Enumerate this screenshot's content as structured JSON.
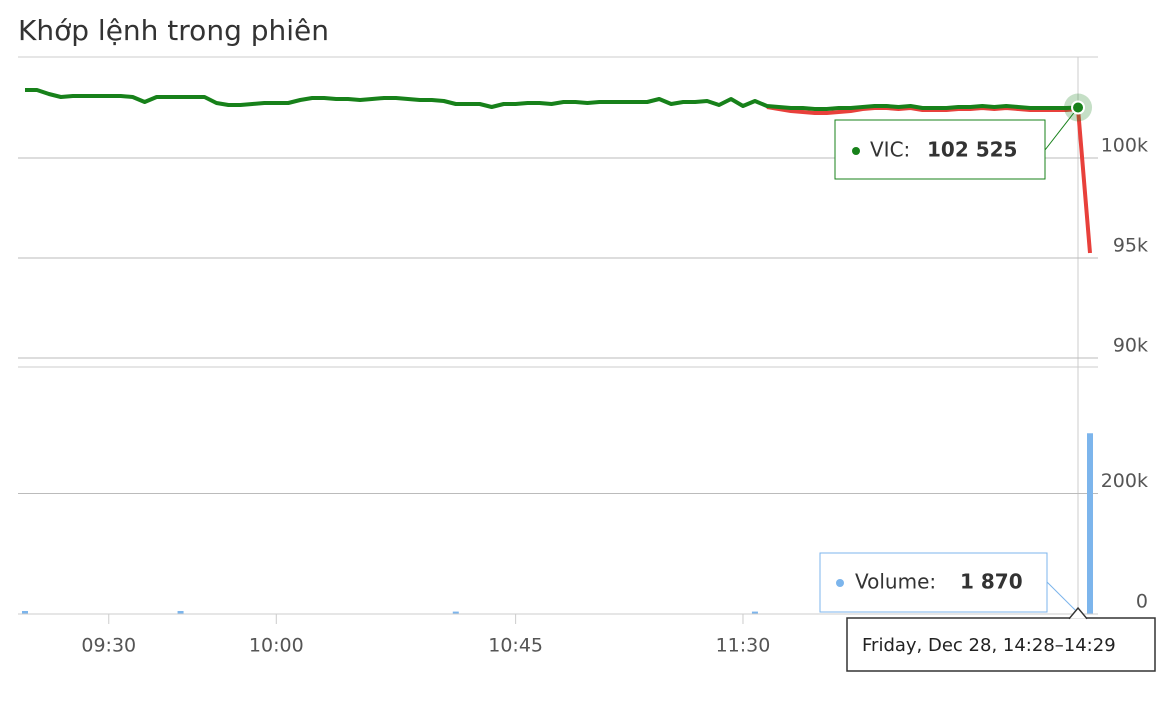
{
  "title": "Khớp lệnh trong phiên",
  "chart_data": [
    {
      "type": "line",
      "ylim": [
        90000,
        105000
      ],
      "yticks": [
        {
          "value": 90000,
          "label": "90k"
        },
        {
          "value": 95000,
          "label": "95k"
        },
        {
          "value": 100000,
          "label": "100k"
        }
      ],
      "grid": true,
      "series": [
        {
          "color": "#e8403b",
          "values": [
            null,
            null,
            null,
            null,
            null,
            null,
            null,
            null,
            null,
            null,
            null,
            null,
            null,
            null,
            null,
            null,
            null,
            null,
            null,
            null,
            null,
            null,
            null,
            null,
            null,
            null,
            null,
            null,
            null,
            null,
            null,
            null,
            null,
            null,
            null,
            null,
            null,
            null,
            null,
            null,
            null,
            null,
            null,
            null,
            null,
            null,
            null,
            null,
            null,
            null,
            null,
            null,
            null,
            null,
            null,
            null,
            null,
            null,
            null,
            null,
            null,
            null,
            102550,
            102450,
            102350,
            102300,
            102250,
            102250,
            102300,
            102350,
            102450,
            102500,
            102500,
            102450,
            102500,
            102400,
            102400,
            102400,
            102450,
            102450,
            102500,
            102450,
            102500,
            102450,
            102400,
            102400,
            102400,
            102400,
            102450,
            95250
          ]
        },
        {
          "color": "#17811a",
          "values": [
            103400,
            103400,
            103200,
            103050,
            103100,
            103100,
            103100,
            103100,
            103100,
            103050,
            102800,
            103050,
            103050,
            103050,
            103050,
            103050,
            102750,
            102650,
            102650,
            102700,
            102750,
            102750,
            102750,
            102900,
            103000,
            103000,
            102950,
            102950,
            102900,
            102950,
            103000,
            103000,
            102950,
            102900,
            102900,
            102850,
            102700,
            102700,
            102700,
            102550,
            102700,
            102700,
            102750,
            102750,
            102700,
            102800,
            102800,
            102750,
            102800,
            102800,
            102800,
            102800,
            102800,
            102950,
            102700,
            102800,
            102800,
            102850,
            102650,
            102950,
            102600,
            102850,
            102600,
            102550,
            102500,
            102500,
            102450,
            102450,
            102500,
            102500,
            102550,
            102600,
            102600,
            102550,
            102600,
            102500,
            102500,
            102500,
            102550,
            102550,
            102600,
            102550,
            102600,
            102550,
            102500,
            102500,
            102500,
            102500,
            102525,
            null
          ]
        }
      ],
      "tooltip": {
        "name": "VIC:",
        "value": 102525,
        "label": "102 525"
      }
    },
    {
      "type": "bar",
      "categories": [
        null,
        null,
        null,
        null,
        null,
        null,
        null,
        "09:30",
        null,
        null,
        null,
        null,
        null,
        null,
        null,
        null,
        null,
        null,
        null,
        null,
        null,
        "10:00",
        null,
        null,
        null,
        null,
        null,
        null,
        null,
        null,
        null,
        null,
        null,
        null,
        null,
        null,
        null,
        null,
        null,
        null,
        null,
        "10:45",
        null,
        null,
        null,
        null,
        null,
        null,
        null,
        null,
        null,
        null,
        null,
        null,
        null,
        null,
        null,
        null,
        null,
        null,
        "11:30",
        null,
        null,
        null,
        null,
        null,
        null,
        null,
        null,
        null,
        null,
        null,
        null,
        null,
        null,
        null,
        null,
        null,
        null,
        null,
        null,
        null,
        null,
        null,
        null,
        null,
        null,
        null,
        null,
        null
      ],
      "ylim": [
        0,
        410000
      ],
      "yticks": [
        0,
        {
          "value": 200000,
          "label": "200k"
        }
      ],
      "grid": true,
      "series": [
        {
          "color": "#7cb5ec",
          "values": [
            5000,
            800,
            800,
            800,
            800,
            800,
            800,
            800,
            800,
            800,
            800,
            800,
            800,
            5000,
            800,
            800,
            800,
            800,
            800,
            800,
            800,
            800,
            800,
            800,
            800,
            800,
            800,
            800,
            800,
            800,
            800,
            800,
            800,
            800,
            800,
            800,
            4000,
            800,
            800,
            800,
            800,
            800,
            800,
            800,
            800,
            800,
            800,
            800,
            800,
            800,
            800,
            800,
            800,
            800,
            800,
            800,
            800,
            800,
            800,
            800,
            800,
            4000,
            800,
            800,
            800,
            800,
            800,
            800,
            800,
            800,
            800,
            800,
            800,
            800,
            800,
            800,
            800,
            800,
            800,
            800,
            800,
            800,
            800,
            800,
            800,
            800,
            800,
            800,
            1870,
            300000
          ]
        }
      ],
      "tooltip": {
        "name": "Volume:",
        "value": 1870,
        "label": "1 870",
        "header": "Friday, Dec 28, 14:28–14:29"
      }
    }
  ]
}
